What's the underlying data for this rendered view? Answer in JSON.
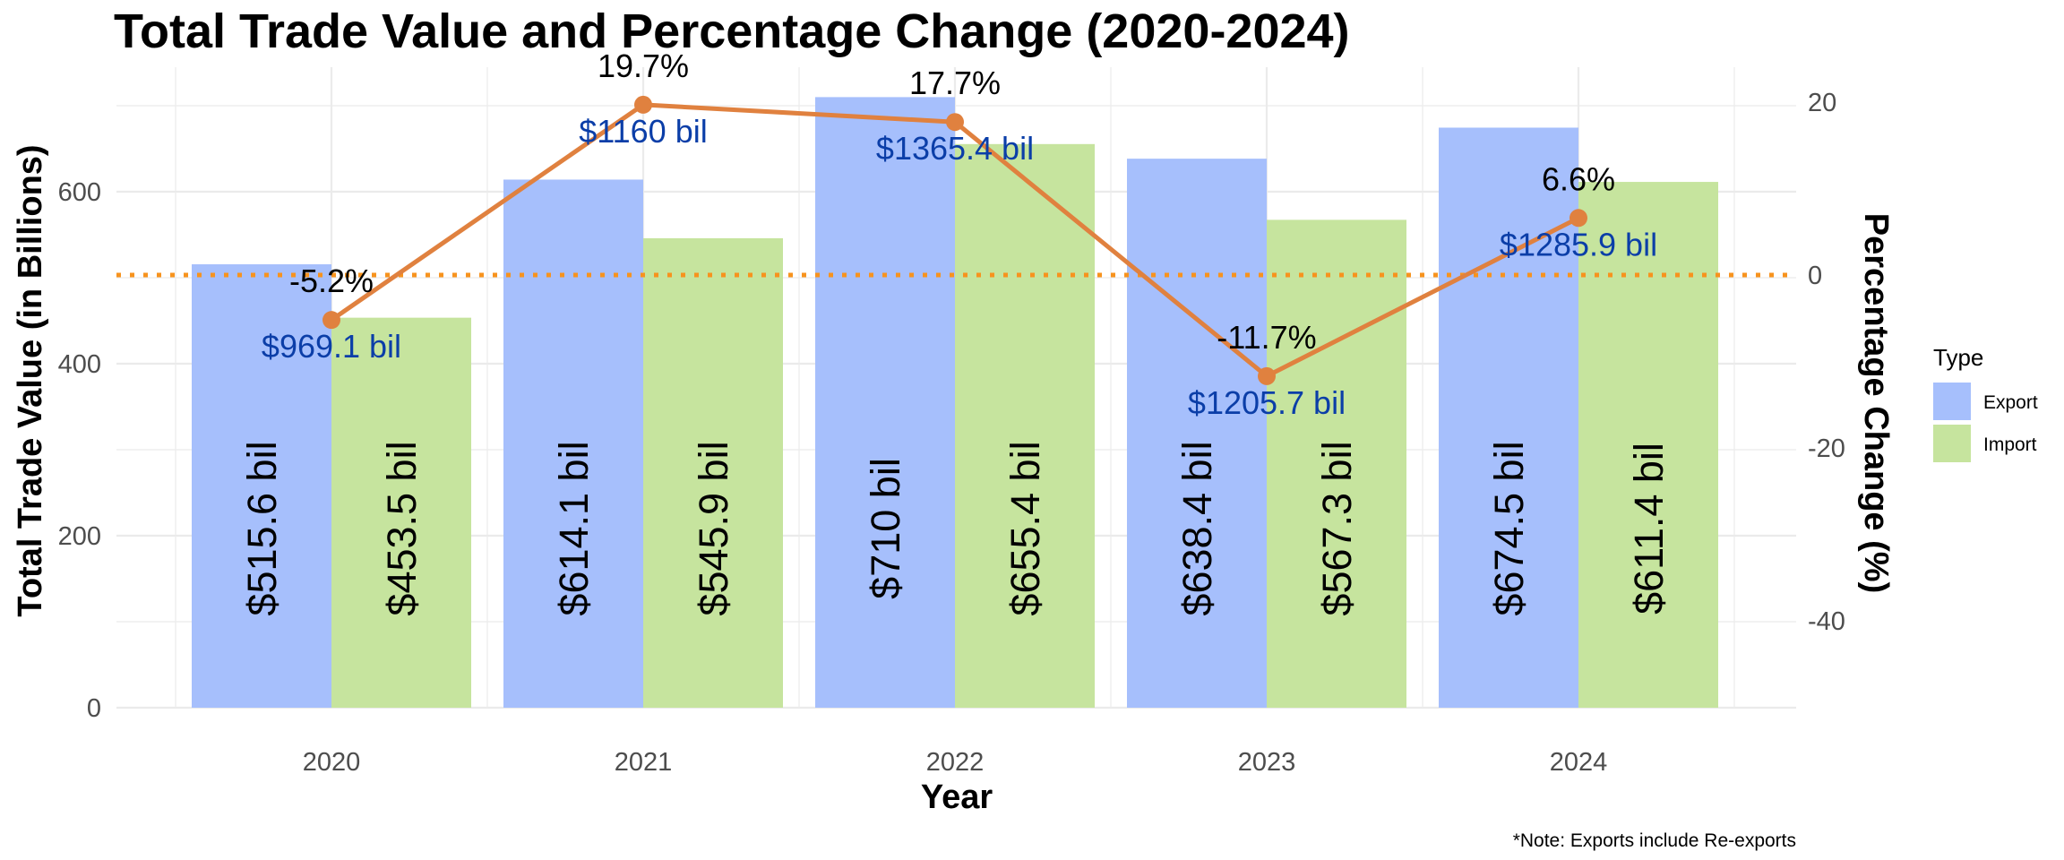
{
  "chart_data": {
    "type": "bar",
    "title": "Total Trade Value and Percentage Change (2020-2024)",
    "xlabel": "Year",
    "ylabel": "Total Trade Value (in Billions)",
    "y2label": "Percentage Change (%)",
    "categories": [
      "2020",
      "2021",
      "2022",
      "2023",
      "2024"
    ],
    "ylim": [
      0,
      745
    ],
    "yticks": [
      0,
      200,
      400,
      600
    ],
    "y2ticks": [
      20,
      0,
      -20,
      -40
    ],
    "series": [
      {
        "name": "Export",
        "values": [
          515.6,
          614.1,
          710,
          638.4,
          674.5
        ],
        "labels": [
          "$515.6 bil",
          "$614.1 bil",
          "$710 bil",
          "$638.4 bil",
          "$674.5 bil"
        ]
      },
      {
        "name": "Import",
        "values": [
          453.5,
          545.9,
          655.4,
          567.3,
          611.4
        ],
        "labels": [
          "$453.5 bil",
          "$545.9 bil",
          "$655.4 bil",
          "$567.3 bil",
          "$611.4 bil"
        ]
      }
    ],
    "pct_change": {
      "values": [
        -5.2,
        19.7,
        17.7,
        -11.7,
        6.6
      ],
      "labels": [
        "-5.2%",
        "19.7%",
        "17.7%",
        "-11.7%",
        "6.6%"
      ],
      "zero_line_value": 0
    },
    "totals": {
      "labels": [
        "$969.1 bil",
        "$1160 bil",
        "$1365.4 bil",
        "$1205.7 bil",
        "$1285.9 bil"
      ]
    },
    "legend": {
      "title": "Type",
      "entries": [
        "Export",
        "Import"
      ],
      "placement": "right"
    },
    "colors": {
      "Export": "#a6bffc",
      "Import": "#c6e49e",
      "line": "#e0813f",
      "zero_line": "#f7931e",
      "totals_text": "#0b3ea8",
      "grid": "#ebebeb"
    },
    "grid": true,
    "note": "*Note: Exports include Re-exports"
  }
}
